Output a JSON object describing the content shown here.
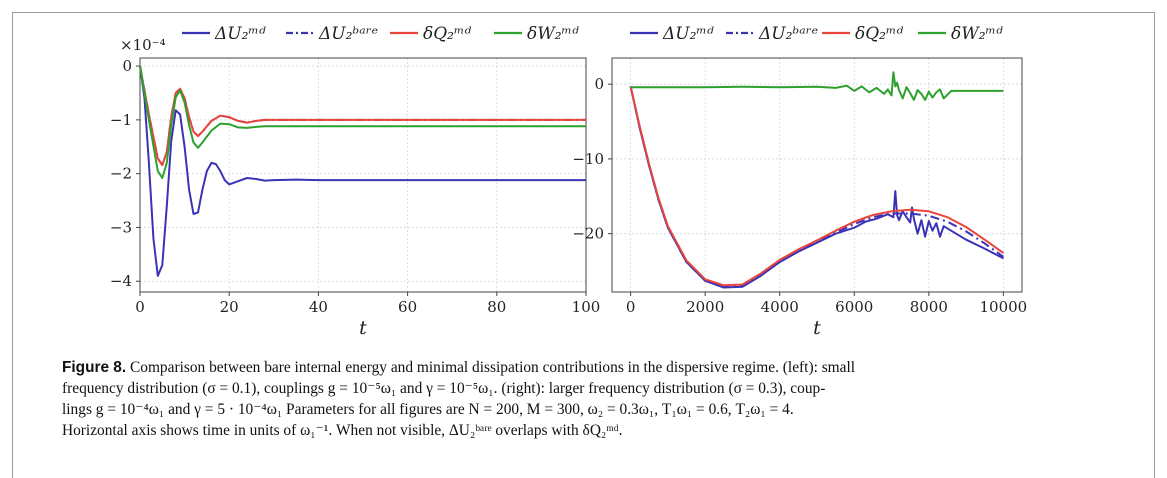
{
  "figure": {
    "label": "Figure 8.",
    "caption_lines": [
      "Comparison between bare internal energy and minimal dissipation contributions in the dispersive regime. (left): small",
      "frequency distribution (σ = 0.1), couplings g = 10⁻⁵ω₁ and γ = 10⁻⁵ω₁. (right): larger frequency distribution (σ = 0.3), coup-",
      "lings g = 10⁻⁴ω₁ and γ = 5 · 10⁻⁴ω₁ Parameters for all figures are N = 200, M = 300, ω₂ = 0.3ω₁, T₁ω₁ = 0.6, T₂ω₁ = 4.",
      "Horizontal axis shows time in units of ω₁⁻¹. When not visible, ΔU₂ᵇᵃʳᵉ overlaps with δQ₂ᵐᵈ."
    ]
  },
  "chart_data": [
    {
      "type": "line",
      "xlabel": "t",
      "ylabel": "",
      "xlim": [
        0,
        100
      ],
      "ylim": [
        -4.2,
        0.15
      ],
      "y_scale_label": "×10⁻⁴",
      "xticks": [
        0,
        20,
        40,
        60,
        80,
        100
      ],
      "yticks": [
        0,
        -1,
        -2,
        -3,
        -4
      ],
      "grid": true,
      "legend_position": "top",
      "legend": [
        "ΔU₂ᵐᵈ",
        "ΔU₂ᵇᵃʳᵉ",
        "δQ₂ᵐᵈ",
        "δW₂ᵐᵈ"
      ],
      "series": [
        {
          "name": "ΔU₂ᵐᵈ",
          "color": "#3b33b5",
          "style": "solid",
          "x": [
            0,
            1,
            2,
            3,
            4,
            5,
            6,
            7,
            8,
            9,
            10,
            11,
            12,
            13,
            14,
            15,
            16,
            17,
            18,
            19,
            20,
            22,
            24,
            26,
            28,
            30,
            35,
            40,
            50,
            60,
            70,
            80,
            90,
            100
          ],
          "y": [
            0,
            -0.6,
            -1.8,
            -3.2,
            -3.9,
            -3.7,
            -2.6,
            -1.4,
            -0.82,
            -0.9,
            -1.5,
            -2.3,
            -2.75,
            -2.72,
            -2.3,
            -1.95,
            -1.8,
            -1.82,
            -1.95,
            -2.12,
            -2.2,
            -2.14,
            -2.08,
            -2.1,
            -2.13,
            -2.12,
            -2.11,
            -2.12,
            -2.12,
            -2.12,
            -2.12,
            -2.12,
            -2.12,
            -2.12
          ]
        },
        {
          "name": "ΔU₂ᵇᵃʳᵉ",
          "color": "#3b33b5",
          "style": "dashdot",
          "x": [
            0,
            2,
            4,
            5,
            6,
            7,
            8,
            9,
            10,
            11,
            12,
            13,
            14,
            16,
            18,
            20,
            22,
            24,
            26,
            28,
            30,
            40,
            60,
            80,
            100
          ],
          "y": [
            0,
            -0.9,
            -1.72,
            -1.84,
            -1.6,
            -0.95,
            -0.5,
            -0.42,
            -0.6,
            -0.95,
            -1.22,
            -1.3,
            -1.22,
            -1.02,
            -0.92,
            -0.95,
            -1.02,
            -1.05,
            -1.02,
            -1.0,
            -1.0,
            -1.0,
            -1.0,
            -1.0,
            -1.0
          ]
        },
        {
          "name": "δQ₂ᵐᵈ",
          "color": "#e8453c",
          "style": "solid",
          "x": [
            0,
            2,
            4,
            5,
            6,
            7,
            8,
            9,
            10,
            11,
            12,
            13,
            14,
            16,
            18,
            20,
            22,
            24,
            26,
            28,
            30,
            40,
            60,
            80,
            100
          ],
          "y": [
            0,
            -0.9,
            -1.72,
            -1.84,
            -1.6,
            -0.95,
            -0.5,
            -0.42,
            -0.6,
            -0.95,
            -1.22,
            -1.3,
            -1.22,
            -1.02,
            -0.92,
            -0.95,
            -1.02,
            -1.05,
            -1.02,
            -1.0,
            -1.0,
            -1.0,
            -1.0,
            -1.0,
            -1.0
          ]
        },
        {
          "name": "δW₂ᵐᵈ",
          "color": "#2ea02e",
          "style": "solid",
          "x": [
            0,
            2,
            4,
            5,
            6,
            7,
            8,
            9,
            10,
            11,
            12,
            13,
            14,
            16,
            18,
            20,
            22,
            24,
            26,
            28,
            30,
            40,
            60,
            80,
            100
          ],
          "y": [
            0,
            -1.0,
            -1.95,
            -2.08,
            -1.8,
            -1.1,
            -0.58,
            -0.45,
            -0.68,
            -1.1,
            -1.42,
            -1.52,
            -1.42,
            -1.2,
            -1.07,
            -1.08,
            -1.14,
            -1.15,
            -1.13,
            -1.12,
            -1.12,
            -1.12,
            -1.12,
            -1.12,
            -1.12
          ]
        }
      ]
    },
    {
      "type": "line",
      "xlabel": "t",
      "ylabel": "",
      "xlim": [
        -500,
        10500
      ],
      "ylim": [
        -27.8,
        3.5
      ],
      "xticks": [
        0,
        2000,
        4000,
        6000,
        8000,
        10000
      ],
      "yticks": [
        0,
        -10,
        -20
      ],
      "grid": true,
      "legend_position": "top",
      "legend": [
        "ΔU₂ᵐᵈ",
        "ΔU₂ᵇᵃʳᵉ",
        "δQ₂ᵐᵈ",
        "δW₂ᵐᵈ"
      ],
      "series": [
        {
          "name": "ΔU₂ᵐᵈ",
          "color": "#3b33b5",
          "style": "solid",
          "x": [
            0,
            250,
            500,
            750,
            1000,
            1500,
            2000,
            2500,
            3000,
            3500,
            4000,
            4500,
            5000,
            5500,
            6000,
            6300,
            6600,
            6900,
            7050,
            7100,
            7150,
            7200,
            7300,
            7400,
            7500,
            7550,
            7600,
            7700,
            7800,
            7900,
            8000,
            8100,
            8200,
            8300,
            8400,
            8600,
            9000,
            9500,
            10000
          ],
          "y": [
            -0.3,
            -6,
            -11,
            -15.5,
            -19.2,
            -23.8,
            -26.3,
            -27.2,
            -27.1,
            -25.6,
            -23.8,
            -22.4,
            -21.2,
            -20.0,
            -19.2,
            -18.4,
            -18.0,
            -17.4,
            -17.8,
            -14.3,
            -17.5,
            -18.2,
            -17.0,
            -17.8,
            -18.5,
            -16.5,
            -18.0,
            -20.0,
            -18.2,
            -20.4,
            -18.3,
            -19.6,
            -18.6,
            -20.4,
            -19.0,
            -19.6,
            -20.8,
            -22.0,
            -23.3
          ]
        },
        {
          "name": "ΔU₂ᵇᵃʳᵉ",
          "color": "#3b33b5",
          "style": "dashdot",
          "x": [
            0,
            250,
            500,
            750,
            1000,
            1500,
            2000,
            2500,
            3000,
            3500,
            4000,
            4500,
            5000,
            5500,
            6000,
            6500,
            7000,
            7500,
            8000,
            8500,
            9000,
            9500,
            10000
          ],
          "y": [
            -0.3,
            -6,
            -11,
            -15.5,
            -19.2,
            -23.8,
            -26.3,
            -27.0,
            -27.0,
            -25.5,
            -23.7,
            -22.3,
            -21.1,
            -19.9,
            -18.7,
            -17.8,
            -17.3,
            -17.3,
            -17.6,
            -18.4,
            -19.7,
            -21.3,
            -23.1
          ]
        },
        {
          "name": "δQ₂ᵐᵈ",
          "color": "#e8453c",
          "style": "solid",
          "x": [
            0,
            250,
            500,
            750,
            1000,
            1500,
            2000,
            2500,
            3000,
            3500,
            4000,
            4500,
            5000,
            5500,
            6000,
            6500,
            7000,
            7500,
            8000,
            8500,
            9000,
            9500,
            10000
          ],
          "y": [
            -0.3,
            -5.8,
            -10.8,
            -15.3,
            -19.0,
            -23.6,
            -26.1,
            -26.9,
            -26.8,
            -25.3,
            -23.5,
            -22.1,
            -20.9,
            -19.6,
            -18.4,
            -17.5,
            -17.0,
            -16.8,
            -17.0,
            -17.8,
            -19.1,
            -20.8,
            -22.6
          ]
        },
        {
          "name": "δW₂ᵐᵈ",
          "color": "#2ea02e",
          "style": "solid",
          "x": [
            0,
            1000,
            2000,
            3000,
            4000,
            5000,
            5500,
            5800,
            6000,
            6200,
            6400,
            6600,
            6800,
            6900,
            7000,
            7050,
            7100,
            7150,
            7200,
            7300,
            7400,
            7500,
            7600,
            7700,
            7800,
            7900,
            8000,
            8100,
            8200,
            8300,
            8400,
            8600,
            9000,
            10000
          ],
          "y": [
            -0.4,
            -0.4,
            -0.4,
            -0.35,
            -0.4,
            -0.35,
            -0.5,
            -0.2,
            -0.9,
            -0.3,
            -1.1,
            -0.5,
            -1.3,
            -0.7,
            -1.5,
            1.6,
            -0.3,
            0.2,
            -0.8,
            -1.9,
            -0.4,
            -1.2,
            -2.1,
            -0.8,
            -1.3,
            -2.1,
            -1.0,
            -1.8,
            -1.1,
            -0.7,
            -1.9,
            -0.9,
            -0.9,
            -0.9
          ]
        }
      ]
    }
  ]
}
